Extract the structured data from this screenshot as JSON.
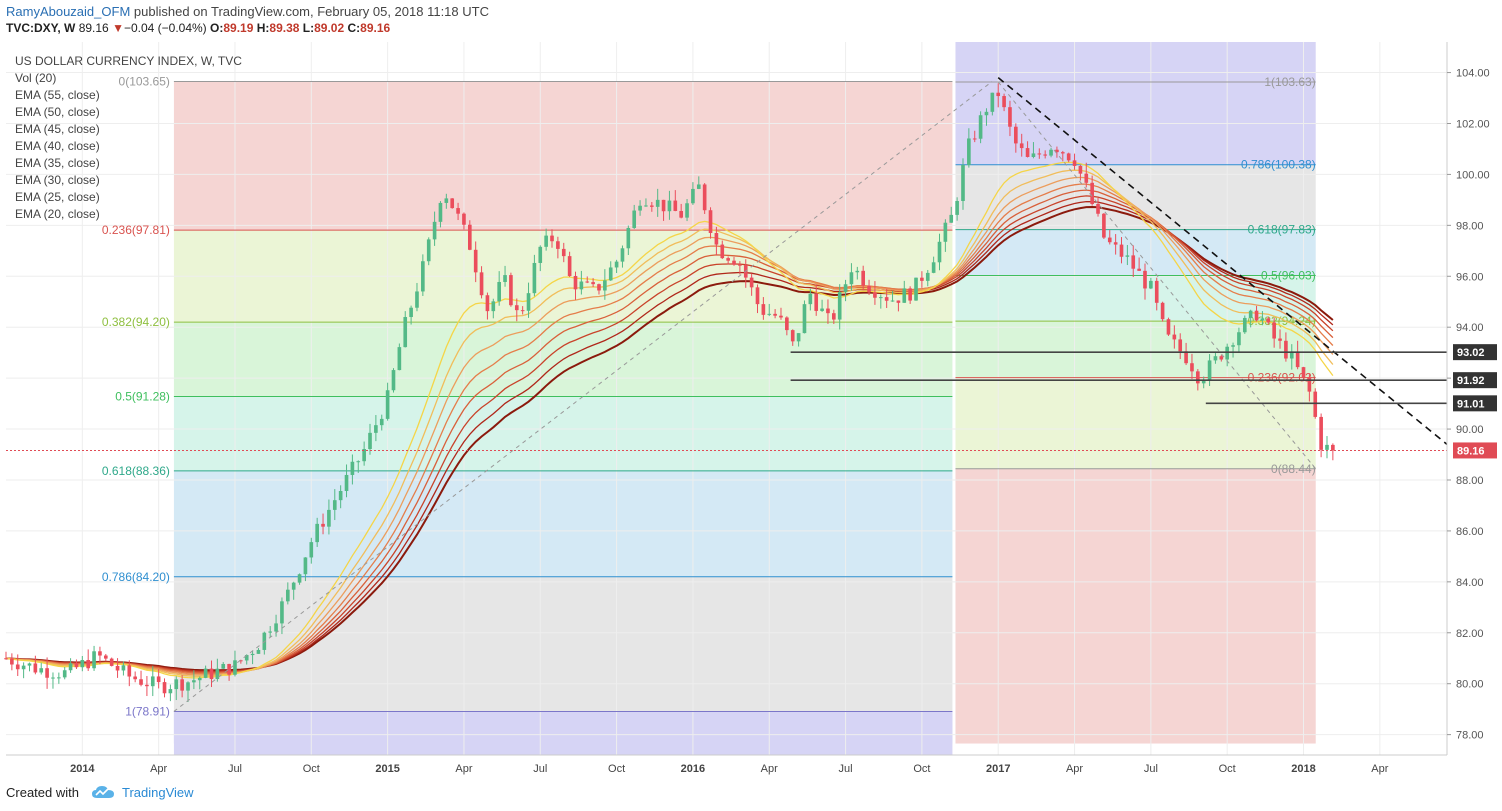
{
  "header": {
    "publisher": "RamyAbouzaid_OFM",
    "published_text": "published on TradingView.com, February 05, 2018 11:18 UTC",
    "symbol": "TVC:DXY, W",
    "last": "89.16",
    "change": "−0.04 (−0.04%)",
    "open_label": "O:",
    "open": "89.19",
    "high_label": "H:",
    "high": "89.38",
    "low_label": "L:",
    "low": "89.02",
    "close_label": "C:",
    "close": "89.16"
  },
  "legend": [
    "US DOLLAR CURRENCY INDEX, W, TVC",
    "Vol (20)",
    "EMA (55, close)",
    "EMA (50, close)",
    "EMA (45, close)",
    "EMA (40, close)",
    "EMA (35, close)",
    "EMA (30, close)",
    "EMA (25, close)",
    "EMA (20, close)"
  ],
  "footer": {
    "created_with": "Created with",
    "brand": "TradingView",
    "logo_icon": "tradingview-cloud-icon"
  },
  "colors": {
    "bull": "#53b987",
    "bear": "#eb4d5c",
    "ema_fast": "#f5d547",
    "ema_slow": "#8b1a0d",
    "trendline": "#111111",
    "support": "#444444",
    "last_price": "#e04b55"
  },
  "chart_data": {
    "type": "candlestick",
    "title": "US DOLLAR CURRENCY INDEX, W, TVC",
    "timeframe": "W",
    "y_axis": {
      "ticks": [
        "104.00",
        "102.00",
        "100.00",
        "98.00",
        "96.00",
        "94.00",
        "92.00",
        "90.00",
        "88.00",
        "86.00",
        "84.00",
        "82.00",
        "80.00",
        "78.00"
      ],
      "ylim": [
        77.2,
        105.2
      ],
      "side": "right"
    },
    "x_axis": {
      "ticks": [
        {
          "label": "2014",
          "t": 2014.0,
          "bold": true
        },
        {
          "label": "Apr",
          "t": 2014.25
        },
        {
          "label": "Jul",
          "t": 2014.5
        },
        {
          "label": "Oct",
          "t": 2014.75
        },
        {
          "label": "2015",
          "t": 2015.0,
          "bold": true
        },
        {
          "label": "Apr",
          "t": 2015.25
        },
        {
          "label": "Jul",
          "t": 2015.5
        },
        {
          "label": "Oct",
          "t": 2015.75
        },
        {
          "label": "2016",
          "t": 2016.0,
          "bold": true
        },
        {
          "label": "Apr",
          "t": 2016.25
        },
        {
          "label": "Jul",
          "t": 2016.5
        },
        {
          "label": "Oct",
          "t": 2016.75
        },
        {
          "label": "2017",
          "t": 2017.0,
          "bold": true
        },
        {
          "label": "Apr",
          "t": 2017.25
        },
        {
          "label": "Jul",
          "t": 2017.5
        },
        {
          "label": "Oct",
          "t": 2017.75
        },
        {
          "label": "2018",
          "t": 2018.0,
          "bold": true
        },
        {
          "label": "Apr",
          "t": 2018.25
        }
      ],
      "xlim": [
        2013.75,
        2018.47
      ]
    },
    "price_path": [
      [
        2013.75,
        81.0
      ],
      [
        2013.85,
        80.6
      ],
      [
        2013.95,
        80.4
      ],
      [
        2014.05,
        81.1
      ],
      [
        2014.15,
        80.3
      ],
      [
        2014.25,
        79.9
      ],
      [
        2014.35,
        80.1
      ],
      [
        2014.42,
        80.4
      ],
      [
        2014.5,
        80.7
      ],
      [
        2014.58,
        81.6
      ],
      [
        2014.66,
        83.2
      ],
      [
        2014.75,
        85.6
      ],
      [
        2014.83,
        87.3
      ],
      [
        2014.92,
        89.1
      ],
      [
        2015.0,
        91.2
      ],
      [
        2015.05,
        93.8
      ],
      [
        2015.12,
        96.5
      ],
      [
        2015.18,
        99.5
      ],
      [
        2015.22,
        98.6
      ],
      [
        2015.27,
        97.2
      ],
      [
        2015.33,
        94.6
      ],
      [
        2015.38,
        95.9
      ],
      [
        2015.43,
        94.3
      ],
      [
        2015.5,
        97.1
      ],
      [
        2015.55,
        97.6
      ],
      [
        2015.6,
        95.8
      ],
      [
        2015.68,
        95.4
      ],
      [
        2015.75,
        96.6
      ],
      [
        2015.83,
        99.2
      ],
      [
        2015.9,
        98.8
      ],
      [
        2015.96,
        98.4
      ],
      [
        2016.02,
        99.5
      ],
      [
        2016.08,
        97.1
      ],
      [
        2016.15,
        96.6
      ],
      [
        2016.22,
        94.7
      ],
      [
        2016.28,
        94.4
      ],
      [
        2016.33,
        93.2
      ],
      [
        2016.38,
        95.4
      ],
      [
        2016.45,
        94.1
      ],
      [
        2016.52,
        96.4
      ],
      [
        2016.58,
        95.6
      ],
      [
        2016.65,
        95.1
      ],
      [
        2016.72,
        95.4
      ],
      [
        2016.78,
        96.6
      ],
      [
        2016.85,
        98.4
      ],
      [
        2016.9,
        101.0
      ],
      [
        2016.96,
        102.6
      ],
      [
        2017.0,
        103.2
      ],
      [
        2017.05,
        101.3
      ],
      [
        2017.1,
        100.5
      ],
      [
        2017.18,
        101.2
      ],
      [
        2017.25,
        100.6
      ],
      [
        2017.3,
        99.1
      ],
      [
        2017.35,
        97.4
      ],
      [
        2017.42,
        96.7
      ],
      [
        2017.5,
        95.5
      ],
      [
        2017.55,
        93.6
      ],
      [
        2017.62,
        92.8
      ],
      [
        2017.66,
        92.0
      ],
      [
        2017.72,
        92.8
      ],
      [
        2017.78,
        93.8
      ],
      [
        2017.85,
        94.6
      ],
      [
        2017.9,
        93.6
      ],
      [
        2017.96,
        92.8
      ],
      [
        2018.02,
        91.4
      ],
      [
        2018.06,
        89.3
      ],
      [
        2018.1,
        89.16
      ]
    ],
    "last_price": 89.16,
    "price_labels": [
      "93.02",
      "91.92",
      "91.01",
      "89.16"
    ],
    "fib_retracement_2014_2016": {
      "from": 78.91,
      "to": 103.65,
      "x_range": [
        2014.3,
        2016.85
      ],
      "levels": [
        {
          "label": "1(78.91)",
          "v": 78.91,
          "fill": "#d6d4f5",
          "line": "#7b76c9"
        },
        {
          "label": "0.786(84.20)",
          "v": 84.2,
          "fill": "#e6e6e6",
          "line": "#2f8fd0"
        },
        {
          "label": "0.618(88.36)",
          "v": 88.36,
          "fill": "#d4e9f5",
          "line": "#2ea88a"
        },
        {
          "label": "0.5(91.28)",
          "v": 91.28,
          "fill": "#d6f4ea",
          "line": "#3fbf5e"
        },
        {
          "label": "0.382(94.20)",
          "v": 94.2,
          "fill": "#d9f5d9",
          "line": "#8fbf40"
        },
        {
          "label": "0.236(97.81)",
          "v": 97.81,
          "fill": "#ebf5d6",
          "line": "#d9534f"
        },
        {
          "label": "0(103.65)",
          "v": 103.65,
          "fill": "#f5d5d3",
          "line": "#999999"
        }
      ]
    },
    "fib_retracement_2017_2018": {
      "from": 103.63,
      "to": 88.44,
      "x_range": [
        2016.86,
        2018.04
      ],
      "levels": [
        {
          "label": "0(88.44)",
          "v": 88.44,
          "fill": "#f5d5d3",
          "line": "#999999"
        },
        {
          "label": "0.236(92.02)",
          "v": 92.02,
          "fill": "#ebf5d6",
          "line": "#d9534f"
        },
        {
          "label": "0.382(94.24)",
          "v": 94.24,
          "fill": "#d9f5d9",
          "line": "#8fbf40"
        },
        {
          "label": "0.5(96.03)",
          "v": 96.03,
          "fill": "#d6f4ea",
          "line": "#3fbf5e"
        },
        {
          "label": "0.618(97.83)",
          "v": 97.83,
          "fill": "#d4e9f5",
          "line": "#2ea88a"
        },
        {
          "label": "0.786(100.38)",
          "v": 100.38,
          "fill": "#e6e6e6",
          "line": "#2f8fd0"
        },
        {
          "label": "1(103.63)",
          "v": 103.63,
          "fill": "#d6d4f5",
          "line": "#999999"
        }
      ]
    },
    "horizontal_levels": [
      {
        "v": 93.02,
        "t0": 2016.32
      },
      {
        "v": 91.92,
        "t0": 2016.32
      },
      {
        "v": 91.01,
        "t0": 2017.68
      }
    ],
    "trendline": {
      "p1": [
        2017.0,
        103.8
      ],
      "p2": [
        2018.47,
        89.4
      ]
    },
    "ema_periods": [
      55,
      50,
      45,
      40,
      35,
      30,
      25,
      20
    ]
  }
}
